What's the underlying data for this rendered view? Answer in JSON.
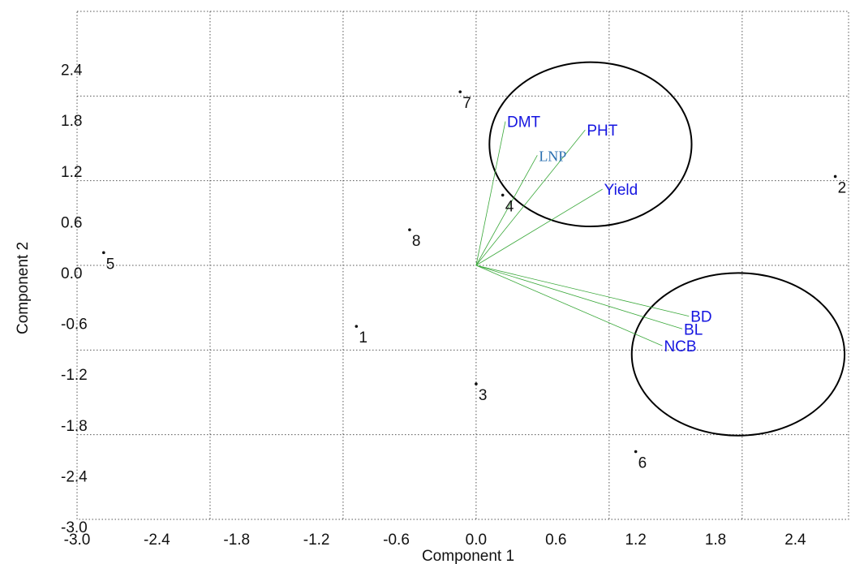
{
  "chart_data": {
    "type": "scatter",
    "xlabel": "Component 1",
    "ylabel": "Component 2",
    "xlim": [
      -3.0,
      2.8
    ],
    "ylim": [
      -3.0,
      3.0
    ],
    "x_ticks": [
      "-3.0",
      "-2.4",
      "-1.8",
      "-1.2",
      "-0.6",
      "0.0",
      "0.6",
      "1.2",
      "1.8",
      "2.4"
    ],
    "y_ticks": [
      "-3.0",
      "-2.4",
      "-1.8",
      "-1.2",
      "-0.6",
      "0.0",
      "0.6",
      "1.2",
      "1.8",
      "2.4"
    ],
    "grid": true,
    "points": [
      {
        "label": "1",
        "x": -0.9,
        "y": -0.72
      },
      {
        "label": "2",
        "x": 2.7,
        "y": 1.05
      },
      {
        "label": "3",
        "x": 0.0,
        "y": -1.4
      },
      {
        "label": "4",
        "x": 0.2,
        "y": 0.83
      },
      {
        "label": "5",
        "x": -2.8,
        "y": 0.15
      },
      {
        "label": "6",
        "x": 1.2,
        "y": -2.2
      },
      {
        "label": "7",
        "x": -0.12,
        "y": 2.05
      },
      {
        "label": "8",
        "x": -0.5,
        "y": 0.42
      }
    ],
    "vectors": [
      {
        "label": "DMT",
        "x": 0.22,
        "y": 1.7,
        "color": "#1515e0"
      },
      {
        "label": "PHT",
        "x": 0.82,
        "y": 1.6,
        "color": "#1515e0"
      },
      {
        "label": "LNP",
        "x": 0.46,
        "y": 1.3,
        "color": "#2a6fb0"
      },
      {
        "label": "Yield",
        "x": 0.95,
        "y": 0.9,
        "color": "#1515e0"
      },
      {
        "label": "BD",
        "x": 1.6,
        "y": -0.6,
        "color": "#1515e0"
      },
      {
        "label": "BL",
        "x": 1.55,
        "y": -0.75,
        "color": "#1515e0"
      },
      {
        "label": "NCB",
        "x": 1.4,
        "y": -0.95,
        "color": "#1515e0"
      }
    ],
    "ellipses": [
      {
        "cx": 0.86,
        "cy": 1.43,
        "rx": 0.76,
        "ry": 0.97
      },
      {
        "cx": 1.97,
        "cy": -1.05,
        "rx": 0.8,
        "ry": 0.96
      }
    ],
    "colors": {
      "vector_line": "#3aa83a",
      "point": "#111111",
      "ellipse": "#000000",
      "grid": "#555555"
    }
  }
}
